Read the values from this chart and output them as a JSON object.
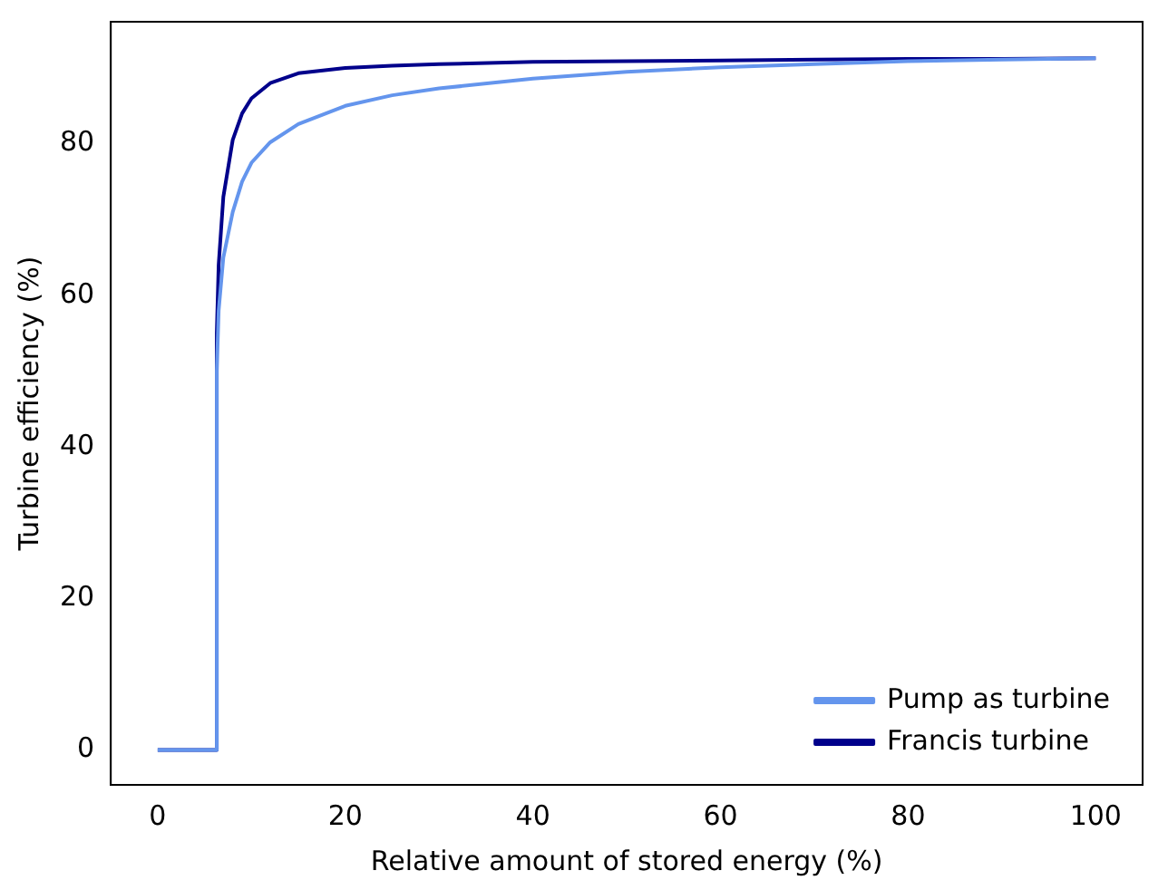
{
  "chart_data": {
    "type": "line",
    "xlabel": "Relative amount of stored energy (%)",
    "ylabel": "Turbine efficiency (%)",
    "xlim": [
      -5,
      105
    ],
    "ylim": [
      -4.6,
      96.1
    ],
    "xticks": [
      0,
      20,
      40,
      60,
      80,
      100
    ],
    "yticks": [
      0,
      20,
      40,
      60,
      80
    ],
    "grid": false,
    "legend": "bottom right",
    "marker": "none",
    "line_style": "solid",
    "series": [
      {
        "name": "Pump as turbine",
        "color": "#6495ed",
        "x": [
          0,
          6.2,
          6.3,
          6.5,
          7,
          8,
          9,
          10,
          12,
          15,
          20,
          25,
          30,
          40,
          50,
          60,
          70,
          80,
          90,
          100
        ],
        "values": [
          0,
          0,
          50,
          58,
          65,
          71,
          75,
          77.5,
          80.2,
          82.6,
          85,
          86.4,
          87.3,
          88.6,
          89.5,
          90.1,
          90.5,
          90.9,
          91.1,
          91.3
        ]
      },
      {
        "name": "Francis turbine",
        "color": "#00008b",
        "x": [
          0,
          6.2,
          6.3,
          6.5,
          7,
          8,
          9,
          10,
          12,
          15,
          20,
          25,
          30,
          40,
          50,
          60,
          70,
          80,
          90,
          100
        ],
        "values": [
          0,
          0,
          55,
          64,
          73,
          80.5,
          84,
          86,
          88,
          89.3,
          90,
          90.3,
          90.5,
          90.8,
          90.9,
          91,
          91.1,
          91.2,
          91.2,
          91.3
        ]
      }
    ]
  }
}
